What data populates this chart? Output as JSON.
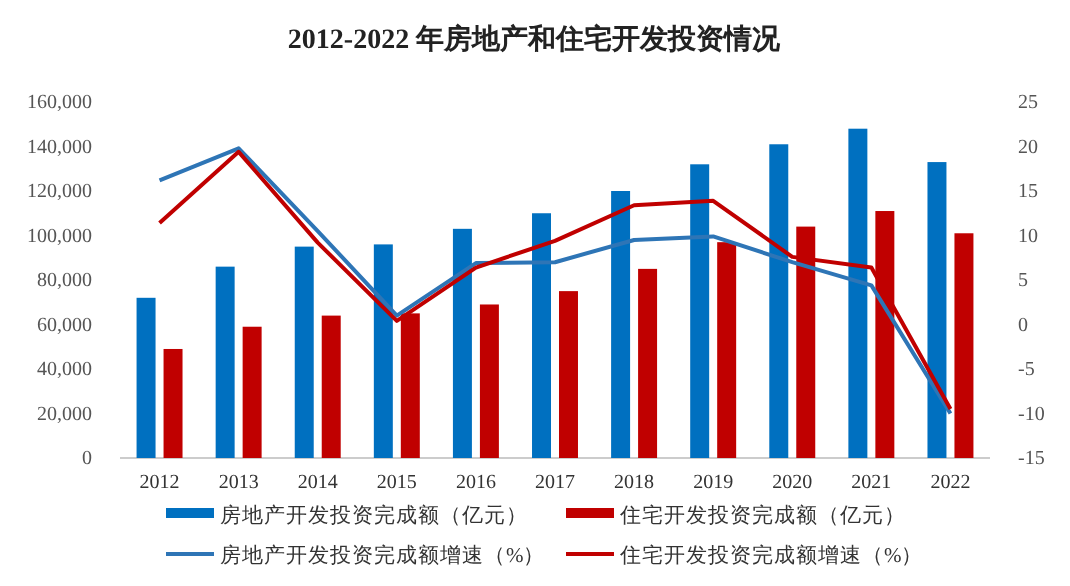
{
  "chart_data": {
    "type": "bar",
    "title": "2012-2022 年房地产和住宅开发投资情况",
    "categories": [
      "2012",
      "2013",
      "2014",
      "2015",
      "2016",
      "2017",
      "2018",
      "2019",
      "2020",
      "2021",
      "2022"
    ],
    "series": [
      {
        "name": "房地产开发投资完成额（亿元）",
        "color": "#0070c0",
        "values": [
          72000,
          86000,
          95000,
          96000,
          103000,
          110000,
          120000,
          132000,
          141000,
          148000,
          133000
        ]
      },
      {
        "name": "住宅开发投资完成额（亿元）",
        "color": "#c00000",
        "values": [
          49000,
          59000,
          64000,
          65000,
          69000,
          75000,
          85000,
          97000,
          104000,
          111000,
          101000
        ]
      },
      {
        "name": "房地产开发投资完成额增速（%）",
        "type": "line",
        "axis": "y2",
        "color": "#2e75b6",
        "values": [
          16.2,
          19.8,
          10.5,
          1.0,
          6.9,
          7.0,
          9.5,
          9.9,
          7.0,
          4.4,
          -10.0
        ]
      },
      {
        "name": "住宅开发投资完成额增速（%）",
        "type": "line",
        "axis": "y2",
        "color": "#c00000",
        "values": [
          11.4,
          19.4,
          9.2,
          0.4,
          6.4,
          9.4,
          13.4,
          13.9,
          7.6,
          6.4,
          -9.5
        ]
      }
    ],
    "ylim": [
      0,
      160000
    ],
    "yticks": [
      {
        "value": 0,
        "label": "0"
      },
      {
        "value": 20000,
        "label": "20,000"
      },
      {
        "value": 40000,
        "label": "40,000"
      },
      {
        "value": 60000,
        "label": "60,000"
      },
      {
        "value": 80000,
        "label": "80,000"
      },
      {
        "value": 100000,
        "label": "100,000"
      },
      {
        "value": 120000,
        "label": "120,000"
      },
      {
        "value": 140000,
        "label": "140,000"
      },
      {
        "value": 160000,
        "label": "160,000"
      }
    ],
    "y2lim": [
      -15,
      25
    ],
    "y2ticks": [
      -15,
      -10,
      -5,
      0,
      5,
      10,
      15,
      20,
      25
    ],
    "legend": "bottom",
    "grid": false
  }
}
